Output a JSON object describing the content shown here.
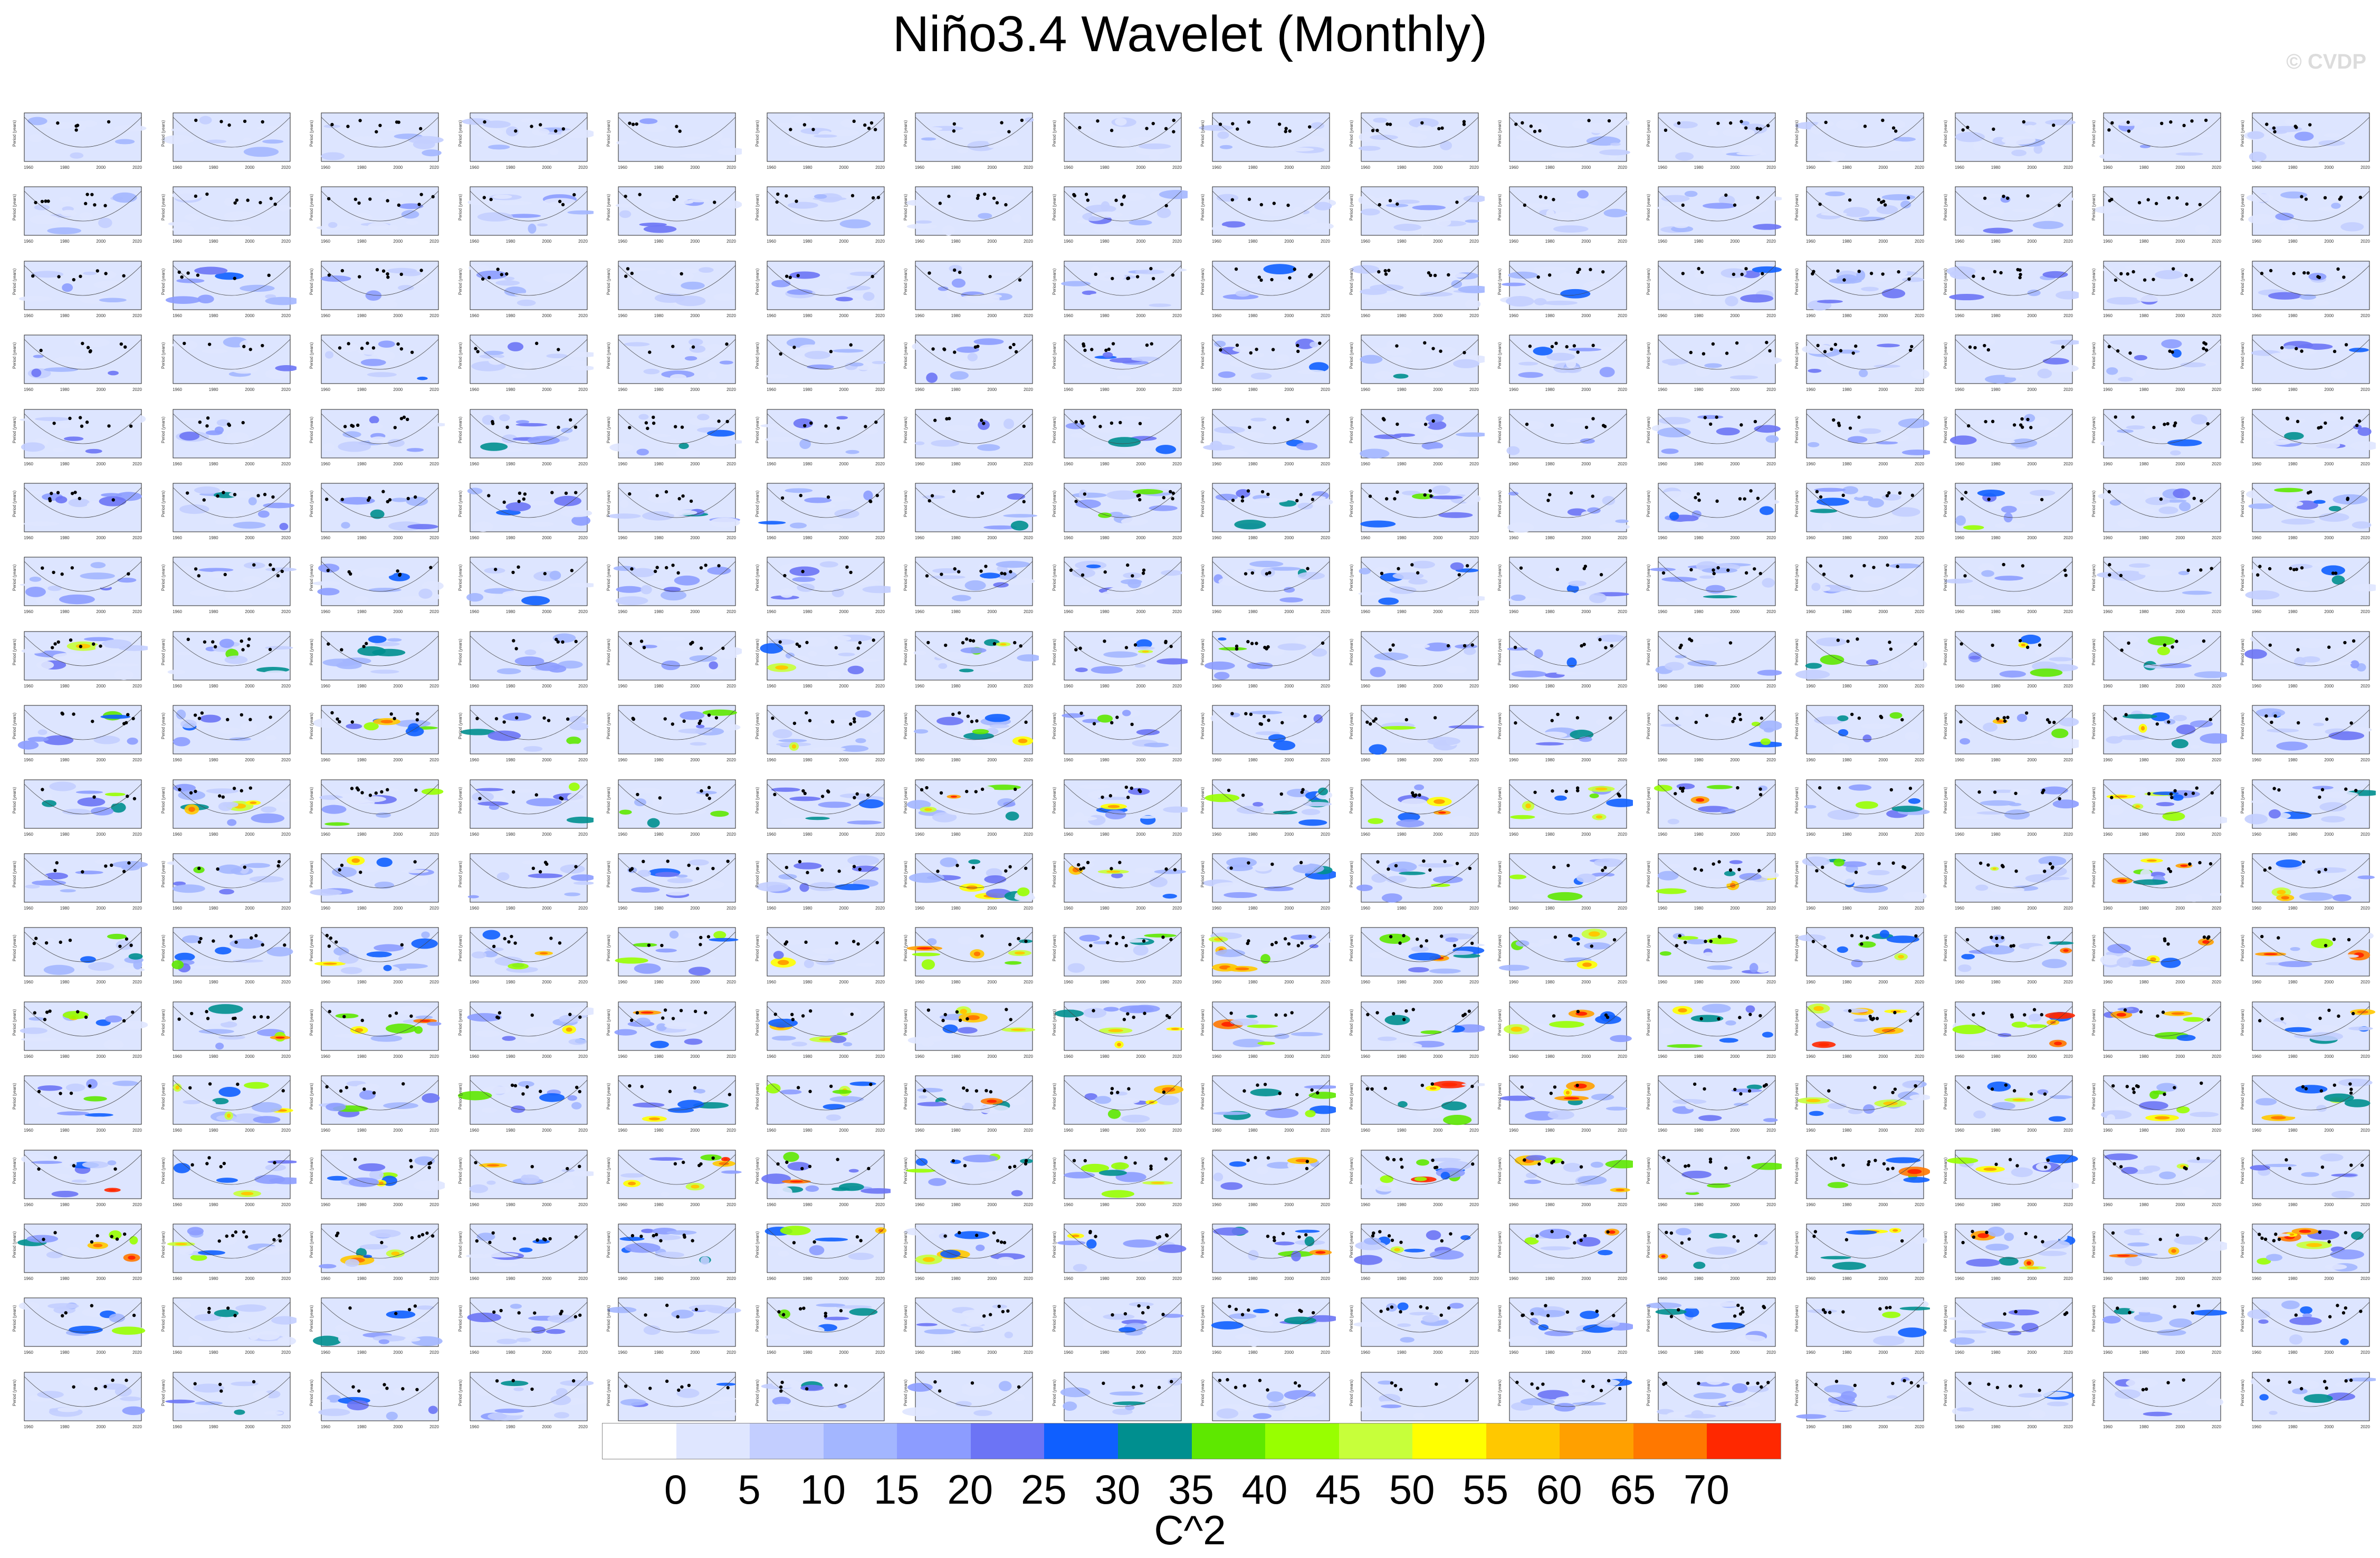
{
  "title": "Niño3.4 Wavelet (Monthly)",
  "watermark": "© CVDP",
  "grid": {
    "rows": 18,
    "cols": 16
  },
  "panel_axes": {
    "ylabel": "Period (years)",
    "xticks": [
      "1960",
      "1980",
      "2000",
      "2020"
    ]
  },
  "colorbar": {
    "label": "C^2",
    "ticks": [
      "0",
      "5",
      "10",
      "15",
      "20",
      "25",
      "30",
      "35",
      "40",
      "45",
      "50",
      "55",
      "60",
      "65",
      "70"
    ],
    "colors": [
      "#ffffff",
      "#dfe6ff",
      "#c3ceff",
      "#a3b6ff",
      "#8c9cff",
      "#6c74f5",
      "#0f5fff",
      "#008f8f",
      "#5ee800",
      "#98ff00",
      "#c7ff3a",
      "#ffff00",
      "#ffc800",
      "#ffa000",
      "#ff7800",
      "#ff2800"
    ]
  },
  "chart_data": {
    "type": "heatmap",
    "title": "Niño3.4 Wavelet (Monthly)",
    "panels": 288,
    "rows": 18,
    "cols": 16,
    "colorbar_label": "C^2",
    "colorbar_range": [
      0,
      70
    ],
    "colorbar_step": 5,
    "panel_intensity_by_row": [
      0.2,
      0.25,
      0.3,
      0.35,
      0.35,
      0.45,
      0.35,
      0.55,
      0.6,
      0.7,
      0.75,
      0.75,
      0.8,
      0.8,
      0.85,
      0.8,
      0.5,
      0.35
    ]
  }
}
